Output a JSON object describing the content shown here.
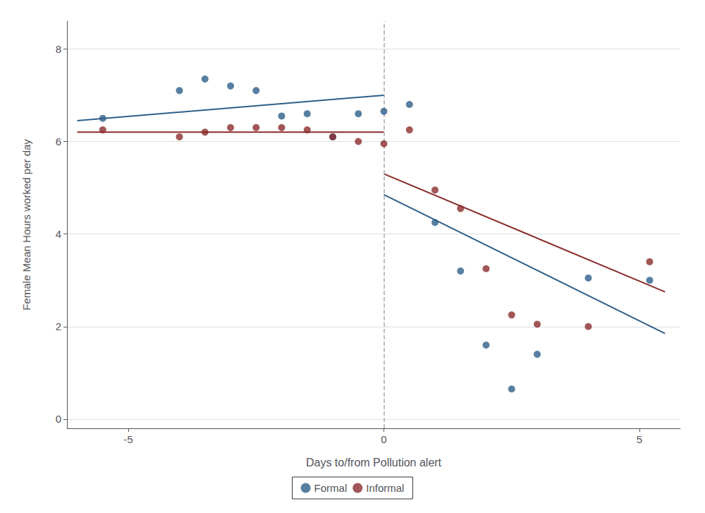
{
  "chart_data": {
    "type": "scatter",
    "xlabel": "Days to/from Pollution alert",
    "ylabel": "Female Mean Hours worked per day",
    "series": [
      {
        "name": "Formal",
        "type": "scatter",
        "marker": "circle",
        "color": "#2e5f8a",
        "x": [
          -5.5,
          -4.0,
          -3.5,
          -3.0,
          -2.5,
          -2.0,
          -1.5,
          -1.0,
          -0.5,
          0.0,
          0.5,
          1.0,
          1.5,
          2.0,
          2.5,
          3.0,
          4.0,
          5.2
        ],
        "values": [
          6.5,
          7.1,
          7.35,
          7.2,
          7.1,
          6.55,
          6.6,
          6.1,
          6.6,
          6.65,
          6.8,
          4.25,
          3.2,
          1.6,
          0.65,
          1.4,
          3.05,
          3.0
        ]
      },
      {
        "name": "Informal",
        "type": "scatter",
        "marker": "circle",
        "color": "#8b2c2c",
        "x": [
          -5.5,
          -4.0,
          -3.5,
          -3.0,
          -2.5,
          -2.0,
          -1.5,
          -1.0,
          -0.5,
          0.0,
          0.5,
          1.0,
          1.5,
          2.0,
          2.5,
          3.0,
          4.0,
          5.2
        ],
        "values": [
          6.25,
          6.1,
          6.2,
          6.3,
          6.3,
          6.3,
          6.25,
          6.1,
          6.0,
          5.95,
          6.25,
          4.95,
          4.55,
          3.25,
          2.25,
          2.05,
          2.0,
          3.4
        ]
      },
      {
        "name": "Formal",
        "type": "line",
        "line_style": "solid",
        "color": "#2e5f8a",
        "x": [
          -6.0,
          0.0
        ],
        "values": [
          6.45,
          7.0
        ]
      },
      {
        "name": "Informal",
        "type": "line",
        "line_style": "solid",
        "color": "#8b2c2c",
        "x": [
          -6.0,
          0.0
        ],
        "values": [
          6.2,
          6.2
        ]
      },
      {
        "name": "Formal",
        "type": "line",
        "line_style": "solid",
        "color": "#2e5f8a",
        "x": [
          0.0,
          5.5
        ],
        "values": [
          4.85,
          1.85
        ]
      },
      {
        "name": "Informal",
        "type": "line",
        "line_style": "solid",
        "color": "#8b2c2c",
        "x": [
          0.0,
          5.5
        ],
        "values": [
          5.3,
          2.75
        ]
      }
    ],
    "vline": {
      "x": 0.0,
      "color": "#aaaaaa",
      "line_style": "dashed"
    },
    "xlim": [
      -6.2,
      5.8
    ],
    "ylim": [
      -0.2,
      8.6
    ],
    "xticks": [
      -5,
      0,
      5
    ],
    "yticks": [
      0,
      2,
      4,
      6,
      8
    ],
    "grid": true,
    "legend": "bottom"
  }
}
